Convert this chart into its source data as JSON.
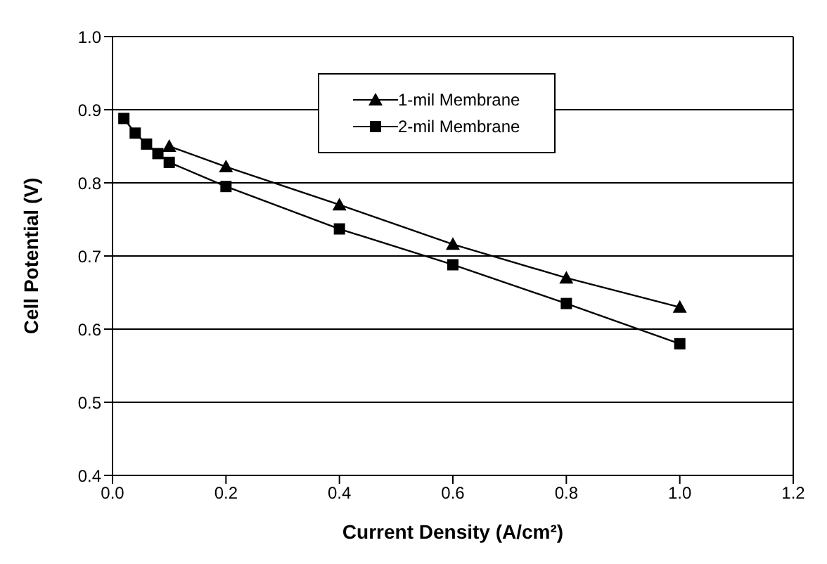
{
  "chart_data": {
    "type": "line",
    "xlabel": "Current Density (A/cm²)",
    "ylabel": "Cell Potential (V)",
    "xlim": [
      0,
      1.2
    ],
    "xticks": [
      {
        "value": 0,
        "label": "0.0"
      },
      0.2,
      0.4,
      0.6,
      0.8,
      {
        "value": 1,
        "label": "1.0"
      },
      {
        "value": 1.2,
        "label": "1.2"
      }
    ],
    "ylim": [
      0.4,
      1
    ],
    "yticks": [
      0.4,
      0.5,
      0.6,
      0.7,
      0.8,
      0.9,
      {
        "value": 1,
        "label": "1.0"
      }
    ],
    "grid": "y",
    "legend": "top right",
    "line_style": "solid",
    "series": [
      {
        "name": "1-mil Membrane",
        "color": "#000000",
        "marker": "triangle",
        "x": [
          0.1,
          0.2,
          0.4,
          0.6,
          0.8,
          1.0
        ],
        "values": [
          0.85,
          0.822,
          0.77,
          0.716,
          0.67,
          0.63
        ]
      },
      {
        "name": "2-mil Membrane",
        "color": "#000000",
        "marker": "square",
        "x": [
          0.02,
          0.04,
          0.06,
          0.08,
          0.1,
          0.2,
          0.4,
          0.6,
          0.8,
          1.0
        ],
        "values": [
          0.888,
          0.868,
          0.853,
          0.84,
          0.828,
          0.795,
          0.737,
          0.688,
          0.635,
          0.58
        ]
      }
    ]
  }
}
